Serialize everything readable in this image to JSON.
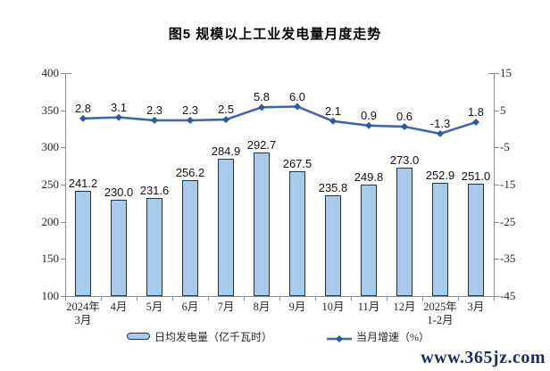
{
  "title": "图5 规模以上工业发电量月度走势",
  "watermark": "www.365jz.com",
  "colors": {
    "bar_fill": "#A8CBE9",
    "bar_border": "#16365C",
    "line": "#3A69B2",
    "marker": "#2B5A9D",
    "axis": "#8C8C8C",
    "watermark": "#1A2F5E"
  },
  "chart_data": {
    "type": "combo_bar_line",
    "title": "图5 规模以上工业发电量月度走势",
    "categories": [
      "2024年\n3月",
      "4月",
      "5月",
      "6月",
      "7月",
      "8月",
      "9月",
      "10月",
      "11月",
      "12月",
      "2025年\n1-2月",
      "3月"
    ],
    "series": [
      {
        "name": "日均发电量（亿千瓦时）",
        "type": "bar",
        "axis": "left",
        "values": [
          241.2,
          230.0,
          231.6,
          256.2,
          284.9,
          292.7,
          267.5,
          235.8,
          249.8,
          273.0,
          252.9,
          251.0
        ]
      },
      {
        "name": "当月增速（%）",
        "type": "line",
        "axis": "right",
        "values": [
          2.8,
          3.1,
          2.3,
          2.3,
          2.5,
          5.8,
          6.0,
          2.1,
          0.9,
          0.6,
          -1.3,
          1.8
        ]
      }
    ],
    "left_axis": {
      "min": 100,
      "max": 400,
      "ticks": [
        400,
        350,
        300,
        250,
        200,
        150,
        100
      ]
    },
    "right_axis": {
      "min": -45,
      "max": 15,
      "ticks": [
        15,
        5,
        -5,
        -15,
        -25,
        -35,
        -45
      ]
    },
    "grid": false,
    "data_labels": true,
    "legend_position": "bottom"
  }
}
